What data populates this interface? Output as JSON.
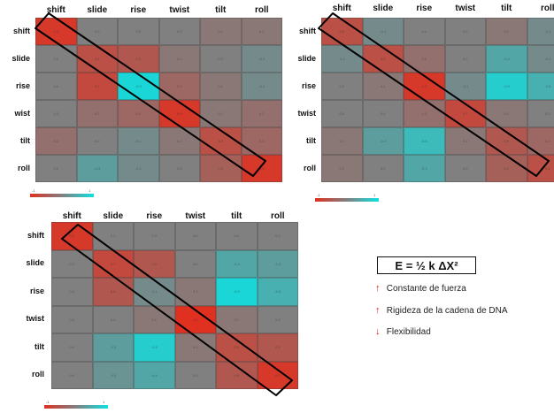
{
  "panels": [
    {
      "id": "panel-1",
      "labels": [
        "shift",
        "slide",
        "rise",
        "twist",
        "tilt",
        "roll"
      ],
      "row_labels": [
        "shift",
        "slide",
        "rise",
        "wist",
        "tilt",
        "roll"
      ],
      "values": [
        [
          0.9,
          0.0,
          0.0,
          0.0,
          0.1,
          0.1
        ],
        [
          0.0,
          0.6,
          0.5,
          0.1,
          0.0,
          -0.1
        ],
        [
          0.0,
          0.7,
          -0.9,
          0.3,
          0.1,
          -0.1
        ],
        [
          0.0,
          0.2,
          0.3,
          0.9,
          0.1,
          0.2
        ],
        [
          0.2,
          0.0,
          -0.1,
          0.1,
          0.6,
          0.3
        ],
        [
          0.0,
          -0.3,
          -0.1,
          0.0,
          0.4,
          0.9
        ]
      ],
      "scale": {
        "min": "-1",
        "max": "1"
      }
    },
    {
      "id": "panel-2",
      "labels": [
        "shift",
        "slide",
        "rise",
        "twist",
        "tilt",
        "roll"
      ],
      "row_labels": [
        "shift",
        "slide",
        "rise",
        "twist",
        "tilt",
        "roll"
      ],
      "values": [
        [
          0.6,
          -0.1,
          0.0,
          0.0,
          0.1,
          -0.1
        ],
        [
          -0.1,
          0.6,
          0.2,
          0.0,
          -0.4,
          -0.1
        ],
        [
          0.0,
          0.1,
          0.9,
          -0.1,
          -0.8,
          -0.5
        ],
        [
          0.0,
          0.0,
          0.2,
          0.7,
          0.1,
          0.0
        ],
        [
          0.1,
          -0.3,
          -0.6,
          0.1,
          0.5,
          0.3
        ],
        [
          0.1,
          0.0,
          -0.4,
          0.0,
          0.4,
          0.6
        ]
      ],
      "scale": {
        "min": "-1",
        "max": "1"
      }
    },
    {
      "id": "panel-3",
      "labels": [
        "shift",
        "slide",
        "rise",
        "twist",
        "tilt",
        "roll"
      ],
      "row_labels": [
        "shift",
        "slide",
        "rise",
        "twist",
        "tilt",
        "roll"
      ],
      "values": [
        [
          0.9,
          0.0,
          0.0,
          0.0,
          0.0,
          0.0
        ],
        [
          0.0,
          0.7,
          0.5,
          0.0,
          -0.4,
          -0.3
        ],
        [
          0.0,
          0.5,
          -0.1,
          0.1,
          -0.9,
          -0.5
        ],
        [
          0.0,
          0.0,
          0.1,
          1.0,
          0.1,
          0.0
        ],
        [
          0.0,
          -0.3,
          -0.8,
          0.1,
          0.6,
          0.5
        ],
        [
          0.0,
          -0.2,
          -0.4,
          0.0,
          0.5,
          0.9
        ]
      ],
      "scale": {
        "min": "-1",
        "max": "1"
      }
    }
  ],
  "legend": {
    "equation": "E = ½ k ΔX²",
    "items": [
      {
        "arrow": "↑",
        "text": "Constante de fuerza"
      },
      {
        "arrow": "↑",
        "text": "Rigideza de la cadena de DNA"
      },
      {
        "arrow": "↓",
        "text": "Flexibilidad"
      }
    ]
  },
  "colors": {
    "red": "#e03020",
    "cyan": "#10e0e0",
    "gray": "#808080",
    "diagonal_box": "#000000"
  }
}
